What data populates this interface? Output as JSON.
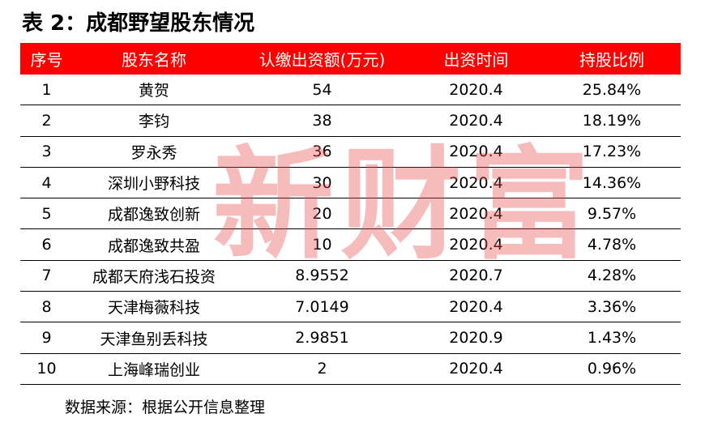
{
  "document": {
    "title": "表 2：成都野望股东情况",
    "source_note": "数据来源：根据公开信息整理",
    "watermark": "新财富",
    "header_color": "#ff0000",
    "watermark_color": "#e85050"
  },
  "table": {
    "headers": [
      "序号",
      "股东名称",
      "认缴出资额(万元)",
      "出资时间",
      "持股比例"
    ],
    "rows": [
      [
        "1",
        "黄贺",
        "54",
        "2020.4",
        "25.84%"
      ],
      [
        "2",
        "李钧",
        "38",
        "2020.4",
        "18.19%"
      ],
      [
        "3",
        "罗永秀",
        "36",
        "2020.4",
        "17.23%"
      ],
      [
        "4",
        "深圳小野科技",
        "30",
        "2020.4",
        "14.36%"
      ],
      [
        "5",
        "成都逸致创新",
        "20",
        "2020.4",
        "9.57%"
      ],
      [
        "6",
        "成都逸致共盈",
        "10",
        "2020.4",
        "4.78%"
      ],
      [
        "7",
        "成都天府浅石投资",
        "8.9552",
        "2020.7",
        "4.28%"
      ],
      [
        "8",
        "天津梅薇科技",
        "7.0149",
        "2020.4",
        "3.36%"
      ],
      [
        "9",
        "天津鱼别丢科技",
        "2.9851",
        "2020.9",
        "1.43%"
      ],
      [
        "10",
        "上海峰瑞创业",
        "2",
        "2020.4",
        "0.96%"
      ]
    ]
  }
}
